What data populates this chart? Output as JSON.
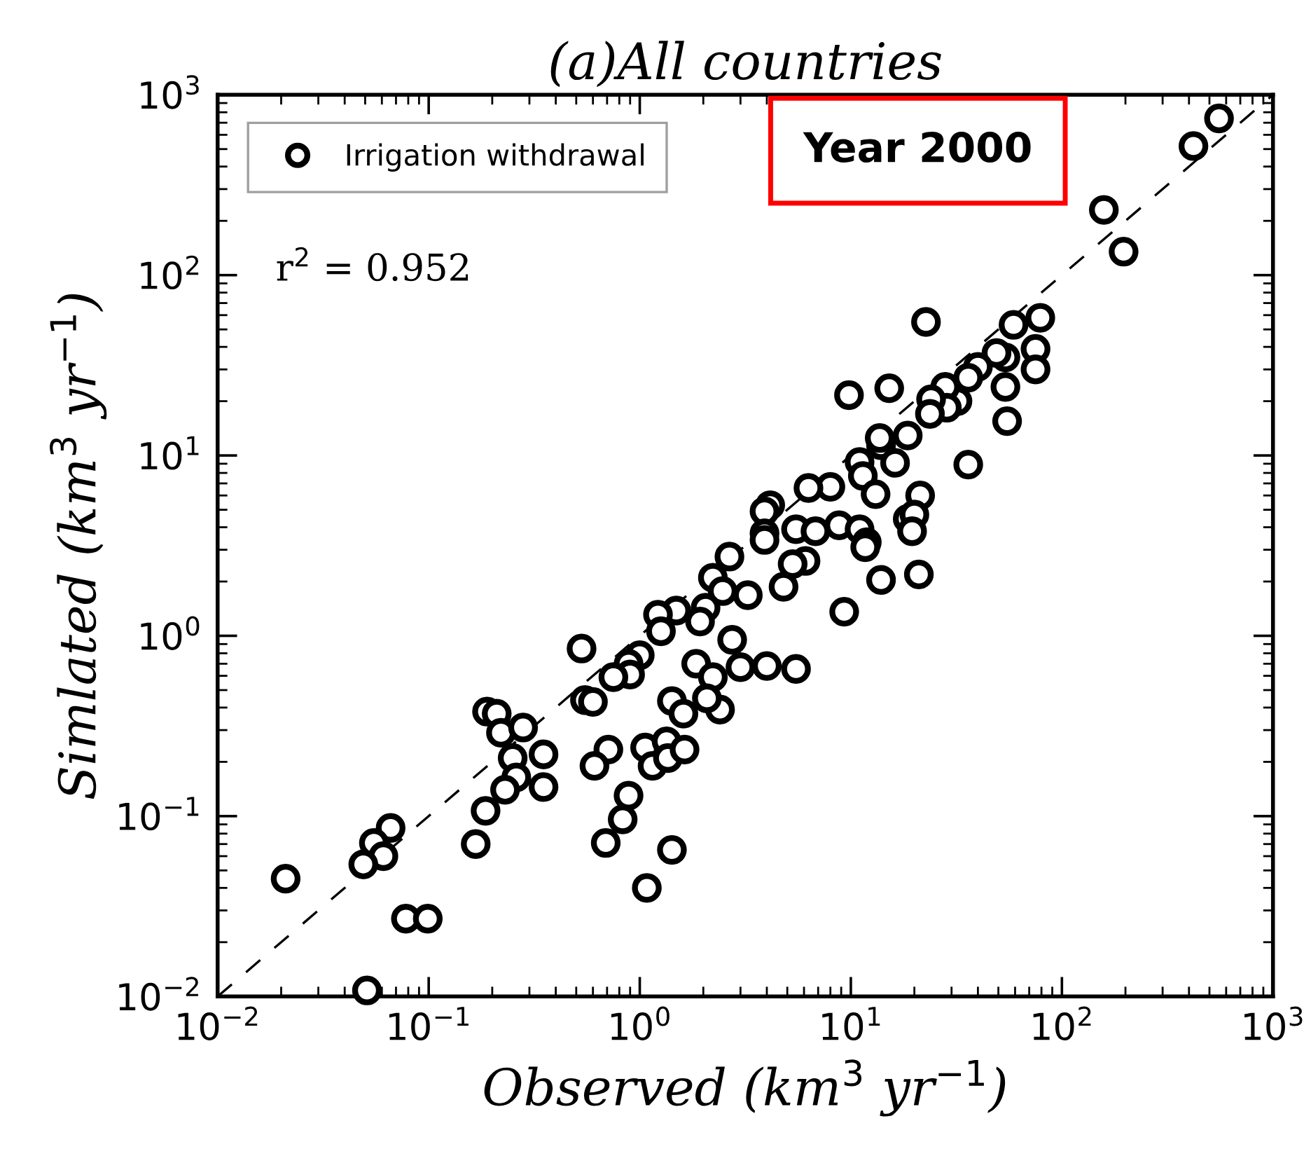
{
  "chart_data": {
    "type": "scatter",
    "title": "(a)All countries",
    "xlabel": "Observed (km$^{3}$ yr$^{−1}$)",
    "ylabel": "Simlated (km$^{3}$ yr$^{−1}$)",
    "log": "xy",
    "xlim": [
      0.01,
      1000
    ],
    "ylim": [
      0.01,
      1000
    ],
    "xticks": [
      {
        "value": 0.01,
        "label": "10$^{−2}$"
      },
      {
        "value": 0.1,
        "label": "10$^{−1}$"
      },
      {
        "value": 1,
        "label": "10$^{0}$"
      },
      {
        "value": 10,
        "label": "10$^{1}$"
      },
      {
        "value": 100,
        "label": "10$^{2}$"
      },
      {
        "value": 1000,
        "label": "10$^{3}$"
      }
    ],
    "yticks": [
      {
        "value": 0.01,
        "label": "10$^{−2}$"
      },
      {
        "value": 0.1,
        "label": "10$^{−1}$"
      },
      {
        "value": 1,
        "label": "10$^{0}$"
      },
      {
        "value": 10,
        "label": "10$^{1}$"
      },
      {
        "value": 100,
        "label": "10$^{2}$"
      },
      {
        "value": 1000,
        "label": "10$^{3}$"
      }
    ],
    "grid": false,
    "legend": "top left",
    "marker": "circle",
    "annotations": [
      "r$^{2}$ = 0.952",
      "Year 2000"
    ],
    "series": [
      {
        "name": "Irrigation withdrawal",
        "color": "#000000",
        "x": [
          555,
          420,
          158,
          196,
          79,
          59,
          22.7,
          75,
          75,
          54,
          49,
          40,
          36,
          54,
          32,
          28,
          28.5,
          24,
          23.7,
          15.2,
          9.8,
          55,
          36,
          18.6,
          13.9,
          13.7,
          11,
          11.4,
          16.2,
          13.1,
          8.0,
          6.3,
          21.3,
          4.15,
          3.9,
          18.6,
          20,
          19.5,
          5.5,
          6.8,
          8.8,
          11,
          3.9,
          11.9,
          3.9,
          11.7,
          6.1,
          5.3,
          4.8,
          3.25,
          13.9,
          21,
          9.3,
          5.5,
          4.0,
          3.0,
          2.74,
          2.4,
          2.66,
          2.22,
          2.47,
          2.05,
          1.93,
          1.49,
          1.22,
          1.26,
          1.85,
          2.22,
          2.08,
          1.42,
          1.61,
          1.0,
          0.885,
          0.9,
          0.75,
          0.53,
          0.55,
          0.6,
          0.71,
          0.61,
          1.06,
          1.15,
          1.34,
          1.36,
          1.63,
          0.885,
          0.83,
          0.69,
          1.42,
          1.08,
          0.189,
          0.21,
          0.22,
          0.28,
          0.25,
          0.35,
          0.26,
          0.23,
          0.35,
          0.186,
          0.167,
          0.066,
          0.055,
          0.061,
          0.049,
          0.021,
          0.078,
          0.099,
          0.051
        ],
        "values": [
          740,
          520,
          230,
          135,
          58,
          53,
          55,
          39,
          30,
          35,
          37,
          31,
          27,
          24,
          20,
          24,
          18.4,
          20.5,
          17,
          23.6,
          21.6,
          15.5,
          8.9,
          12.9,
          11.4,
          12.5,
          9.2,
          7.7,
          9.1,
          6.1,
          6.7,
          6.6,
          6.0,
          5.3,
          4.9,
          4.45,
          4.7,
          3.8,
          3.9,
          3.8,
          4.1,
          3.9,
          3.7,
          3.3,
          3.4,
          3.1,
          2.6,
          2.5,
          1.87,
          1.68,
          2.04,
          2.19,
          1.36,
          0.655,
          0.68,
          0.67,
          0.95,
          0.39,
          2.75,
          2.1,
          1.77,
          1.43,
          1.2,
          1.38,
          1.31,
          1.06,
          0.7,
          0.59,
          0.45,
          0.435,
          0.37,
          0.78,
          0.7,
          0.61,
          0.59,
          0.85,
          0.44,
          0.43,
          0.234,
          0.19,
          0.24,
          0.19,
          0.26,
          0.21,
          0.234,
          0.13,
          0.096,
          0.071,
          0.065,
          0.04,
          0.38,
          0.37,
          0.29,
          0.31,
          0.21,
          0.22,
          0.164,
          0.14,
          0.145,
          0.107,
          0.07,
          0.086,
          0.071,
          0.06,
          0.054,
          0.045,
          0.027,
          0.027,
          0.0108
        ]
      },
      {
        "type": "line",
        "color": "#000000",
        "line_style": "dashed",
        "marker": "none",
        "x": [
          0.01,
          1000
        ],
        "values": [
          0.01,
          1000
        ]
      }
    ]
  }
}
